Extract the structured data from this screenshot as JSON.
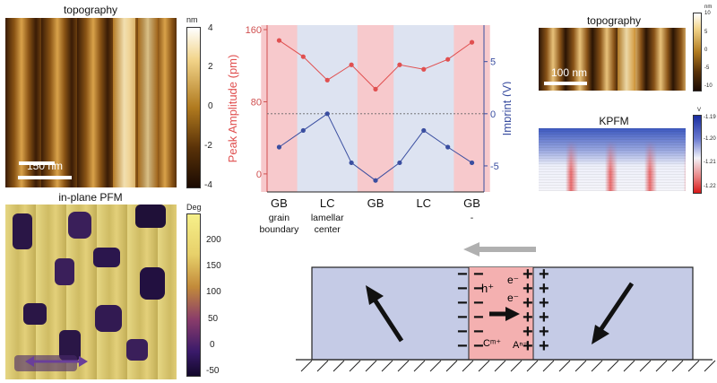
{
  "panels": {
    "topo_large": {
      "title": "topography",
      "scalebar": "150 nm",
      "colorbar": {
        "unit": "nm",
        "ticks": [
          "4",
          "2",
          "0",
          "-2",
          "-4"
        ]
      }
    },
    "pfm": {
      "title": "in-plane PFM",
      "colorbar": {
        "unit": "Deg",
        "ticks": [
          "200",
          "150",
          "100",
          "50",
          "0",
          "-50"
        ]
      }
    },
    "topo_small": {
      "title": "topography",
      "scalebar": "100 nm",
      "colorbar": {
        "unit": "nm",
        "ticks": [
          "10",
          "5",
          "0",
          "-5",
          "-10"
        ]
      }
    },
    "kpfm": {
      "title": "KPFM",
      "colorbar": {
        "unit": "V",
        "ticks": [
          "-1.19",
          "-1.20",
          "-1.21",
          "-1.22"
        ]
      }
    }
  },
  "chart_data": {
    "type": "line",
    "xlabels_top": [
      "GB",
      "LC",
      "GB",
      "LC",
      "GB"
    ],
    "xlabels_bottom": [
      "grain\nboundary",
      "lamellar\ncenter",
      "",
      "",
      "-"
    ],
    "ylabel_left": "Peak Amplitude (pm)",
    "ylabel_right": "Imprint (V)",
    "yleft_ticks": [
      "160",
      "80",
      "0"
    ],
    "yright_ticks": [
      "5",
      "0",
      "-5"
    ],
    "ylim_left": [
      -20,
      165
    ],
    "ylim_right": [
      -7.5,
      8.5
    ],
    "x": [
      0,
      1,
      2,
      3,
      4,
      5,
      6,
      7,
      8
    ],
    "gb_bands": [
      0,
      4,
      8
    ],
    "series": [
      {
        "name": "amplitude",
        "axis": "left",
        "color": "#e05050",
        "values": [
          148,
          130,
          104,
          121,
          94,
          121,
          116,
          127,
          146
        ]
      },
      {
        "name": "imprint",
        "axis": "right",
        "color": "#3a4ea0",
        "values": [
          -3.2,
          -1.6,
          0.0,
          -4.7,
          -6.4,
          -4.7,
          -1.6,
          -3.2,
          -4.7
        ]
      }
    ],
    "colors": {
      "band_pink": "#f7c9cc",
      "band_blue": "#dde3f1"
    }
  },
  "schematic": {
    "minus_signs": [
      "−",
      "−",
      "−",
      "−",
      "−",
      "−"
    ],
    "plus_signs": [
      "+",
      "+",
      "+",
      "+",
      "+",
      "+"
    ],
    "labels": {
      "h": "h⁺",
      "e1": "e⁻",
      "e2": "e⁻",
      "c": "Cᵐ⁺",
      "a": "Aⁿ⁻"
    },
    "colors": {
      "body": "#c5cbe6",
      "wall": "#f4b0b0"
    }
  }
}
